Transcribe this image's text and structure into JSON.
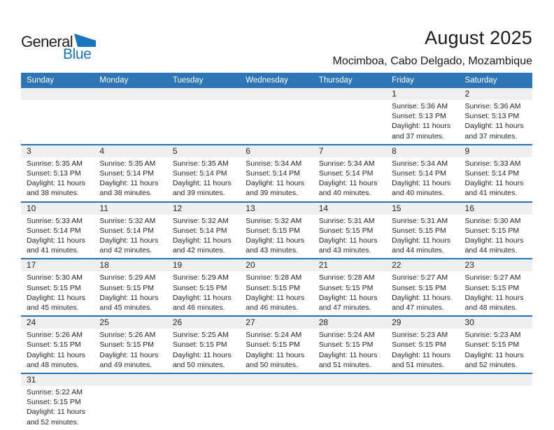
{
  "logo": {
    "text_top": "General",
    "text_bottom": "Blue"
  },
  "header": {
    "title": "August 2025",
    "subtitle": "Mocimboa, Cabo Delgado, Mozambique"
  },
  "colors": {
    "header_bg": "#2E75B6",
    "week_rule": "#2471B5",
    "stripe_bg": "#EFEFEF",
    "logo_blue": "#1B75BC",
    "header_text": "#FFFFFF"
  },
  "weekdays": [
    "Sunday",
    "Monday",
    "Tuesday",
    "Wednesday",
    "Thursday",
    "Friday",
    "Saturday"
  ],
  "weeks": [
    [
      null,
      null,
      null,
      null,
      null,
      {
        "day": "1",
        "sunrise": "Sunrise: 5:36 AM",
        "sunset": "Sunset: 5:13 PM",
        "daylight": "Daylight: 11 hours and 37 minutes."
      },
      {
        "day": "2",
        "sunrise": "Sunrise: 5:36 AM",
        "sunset": "Sunset: 5:13 PM",
        "daylight": "Daylight: 11 hours and 37 minutes."
      }
    ],
    [
      {
        "day": "3",
        "sunrise": "Sunrise: 5:35 AM",
        "sunset": "Sunset: 5:13 PM",
        "daylight": "Daylight: 11 hours and 38 minutes."
      },
      {
        "day": "4",
        "sunrise": "Sunrise: 5:35 AM",
        "sunset": "Sunset: 5:14 PM",
        "daylight": "Daylight: 11 hours and 38 minutes."
      },
      {
        "day": "5",
        "sunrise": "Sunrise: 5:35 AM",
        "sunset": "Sunset: 5:14 PM",
        "daylight": "Daylight: 11 hours and 39 minutes."
      },
      {
        "day": "6",
        "sunrise": "Sunrise: 5:34 AM",
        "sunset": "Sunset: 5:14 PM",
        "daylight": "Daylight: 11 hours and 39 minutes."
      },
      {
        "day": "7",
        "sunrise": "Sunrise: 5:34 AM",
        "sunset": "Sunset: 5:14 PM",
        "daylight": "Daylight: 11 hours and 40 minutes."
      },
      {
        "day": "8",
        "sunrise": "Sunrise: 5:34 AM",
        "sunset": "Sunset: 5:14 PM",
        "daylight": "Daylight: 11 hours and 40 minutes."
      },
      {
        "day": "9",
        "sunrise": "Sunrise: 5:33 AM",
        "sunset": "Sunset: 5:14 PM",
        "daylight": "Daylight: 11 hours and 41 minutes."
      }
    ],
    [
      {
        "day": "10",
        "sunrise": "Sunrise: 5:33 AM",
        "sunset": "Sunset: 5:14 PM",
        "daylight": "Daylight: 11 hours and 41 minutes."
      },
      {
        "day": "11",
        "sunrise": "Sunrise: 5:32 AM",
        "sunset": "Sunset: 5:14 PM",
        "daylight": "Daylight: 11 hours and 42 minutes."
      },
      {
        "day": "12",
        "sunrise": "Sunrise: 5:32 AM",
        "sunset": "Sunset: 5:14 PM",
        "daylight": "Daylight: 11 hours and 42 minutes."
      },
      {
        "day": "13",
        "sunrise": "Sunrise: 5:32 AM",
        "sunset": "Sunset: 5:15 PM",
        "daylight": "Daylight: 11 hours and 43 minutes."
      },
      {
        "day": "14",
        "sunrise": "Sunrise: 5:31 AM",
        "sunset": "Sunset: 5:15 PM",
        "daylight": "Daylight: 11 hours and 43 minutes."
      },
      {
        "day": "15",
        "sunrise": "Sunrise: 5:31 AM",
        "sunset": "Sunset: 5:15 PM",
        "daylight": "Daylight: 11 hours and 44 minutes."
      },
      {
        "day": "16",
        "sunrise": "Sunrise: 5:30 AM",
        "sunset": "Sunset: 5:15 PM",
        "daylight": "Daylight: 11 hours and 44 minutes."
      }
    ],
    [
      {
        "day": "17",
        "sunrise": "Sunrise: 5:30 AM",
        "sunset": "Sunset: 5:15 PM",
        "daylight": "Daylight: 11 hours and 45 minutes."
      },
      {
        "day": "18",
        "sunrise": "Sunrise: 5:29 AM",
        "sunset": "Sunset: 5:15 PM",
        "daylight": "Daylight: 11 hours and 45 minutes."
      },
      {
        "day": "19",
        "sunrise": "Sunrise: 5:29 AM",
        "sunset": "Sunset: 5:15 PM",
        "daylight": "Daylight: 11 hours and 46 minutes."
      },
      {
        "day": "20",
        "sunrise": "Sunrise: 5:28 AM",
        "sunset": "Sunset: 5:15 PM",
        "daylight": "Daylight: 11 hours and 46 minutes."
      },
      {
        "day": "21",
        "sunrise": "Sunrise: 5:28 AM",
        "sunset": "Sunset: 5:15 PM",
        "daylight": "Daylight: 11 hours and 47 minutes."
      },
      {
        "day": "22",
        "sunrise": "Sunrise: 5:27 AM",
        "sunset": "Sunset: 5:15 PM",
        "daylight": "Daylight: 11 hours and 47 minutes."
      },
      {
        "day": "23",
        "sunrise": "Sunrise: 5:27 AM",
        "sunset": "Sunset: 5:15 PM",
        "daylight": "Daylight: 11 hours and 48 minutes."
      }
    ],
    [
      {
        "day": "24",
        "sunrise": "Sunrise: 5:26 AM",
        "sunset": "Sunset: 5:15 PM",
        "daylight": "Daylight: 11 hours and 48 minutes."
      },
      {
        "day": "25",
        "sunrise": "Sunrise: 5:26 AM",
        "sunset": "Sunset: 5:15 PM",
        "daylight": "Daylight: 11 hours and 49 minutes."
      },
      {
        "day": "26",
        "sunrise": "Sunrise: 5:25 AM",
        "sunset": "Sunset: 5:15 PM",
        "daylight": "Daylight: 11 hours and 50 minutes."
      },
      {
        "day": "27",
        "sunrise": "Sunrise: 5:24 AM",
        "sunset": "Sunset: 5:15 PM",
        "daylight": "Daylight: 11 hours and 50 minutes."
      },
      {
        "day": "28",
        "sunrise": "Sunrise: 5:24 AM",
        "sunset": "Sunset: 5:15 PM",
        "daylight": "Daylight: 11 hours and 51 minutes."
      },
      {
        "day": "29",
        "sunrise": "Sunrise: 5:23 AM",
        "sunset": "Sunset: 5:15 PM",
        "daylight": "Daylight: 11 hours and 51 minutes."
      },
      {
        "day": "30",
        "sunrise": "Sunrise: 5:23 AM",
        "sunset": "Sunset: 5:15 PM",
        "daylight": "Daylight: 11 hours and 52 minutes."
      }
    ],
    [
      {
        "day": "31",
        "sunrise": "Sunrise: 5:22 AM",
        "sunset": "Sunset: 5:15 PM",
        "daylight": "Daylight: 11 hours and 52 minutes."
      },
      null,
      null,
      null,
      null,
      null,
      null
    ]
  ]
}
